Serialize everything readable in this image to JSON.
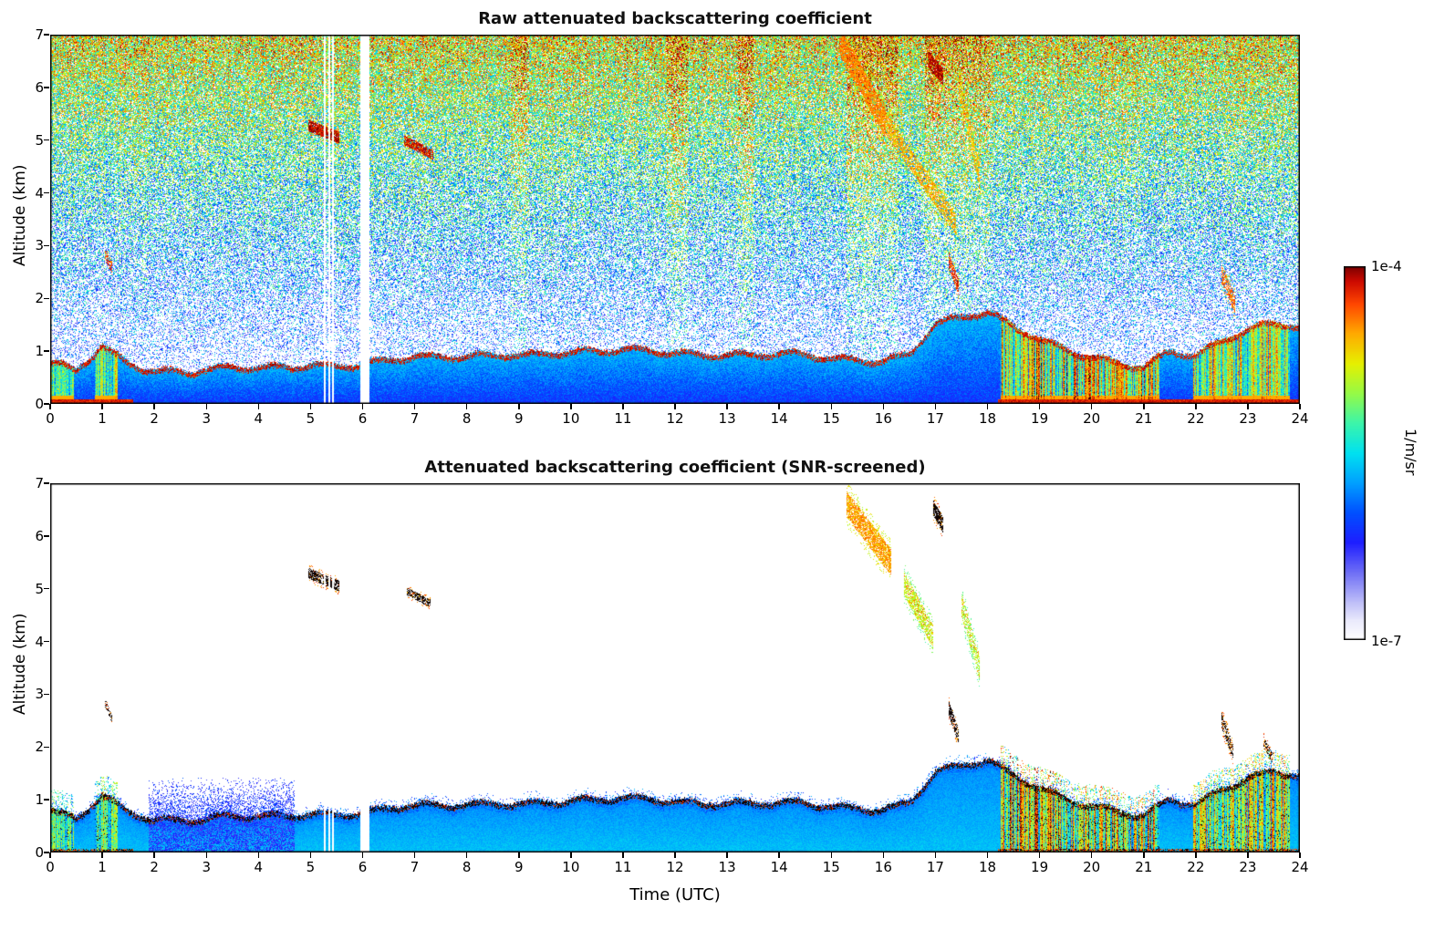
{
  "figure": {
    "xlabel": "Time (UTC)",
    "ylabel": "Altitude (km)"
  },
  "colorbar": {
    "max_label": "1e-4",
    "min_label": "1e-7",
    "unit": "1/m/sr",
    "scale": "log"
  },
  "colormap": [
    [
      0.0,
      255,
      255,
      255
    ],
    [
      0.05,
      235,
      235,
      252
    ],
    [
      0.1,
      190,
      190,
      248
    ],
    [
      0.18,
      110,
      110,
      245
    ],
    [
      0.26,
      30,
      30,
      255
    ],
    [
      0.34,
      0,
      80,
      255
    ],
    [
      0.42,
      0,
      160,
      255
    ],
    [
      0.5,
      0,
      225,
      240
    ],
    [
      0.58,
      60,
      245,
      170
    ],
    [
      0.66,
      150,
      250,
      70
    ],
    [
      0.74,
      230,
      240,
      0
    ],
    [
      0.82,
      255,
      170,
      0
    ],
    [
      0.9,
      255,
      70,
      0
    ],
    [
      0.96,
      205,
      10,
      0
    ],
    [
      1.0,
      125,
      0,
      0
    ]
  ],
  "chart_data": [
    {
      "type": "heatmap",
      "title": "Raw attenuated backscattering coefficient",
      "xlabel": "",
      "ylabel": "Altitude (km)",
      "x_range": [
        0,
        24
      ],
      "y_range": [
        0,
        7
      ],
      "xticks": [
        0,
        1,
        2,
        3,
        4,
        5,
        6,
        7,
        8,
        9,
        10,
        11,
        12,
        13,
        14,
        15,
        16,
        17,
        18,
        19,
        20,
        21,
        22,
        23,
        24
      ],
      "yticks": [
        0,
        1,
        2,
        3,
        4,
        5,
        6,
        7
      ],
      "value_range": [
        "1e-7",
        "1e-4"
      ],
      "units": "1/m/sr",
      "description": "Range-corrected raw lidar backscatter: noise speckle increases from white/blue at low altitude to green/yellow/orange near 7 km; solid blue boundary layer below ~1 km capped by a dark-red gradient line; clouds and precipitation in warm colors; white column = data gap near 06 UTC.",
      "snr_screened": false,
      "data_gaps": [
        [
          5.95,
          6.13
        ]
      ],
      "thin_gaps": [
        [
          5.26,
          5.29
        ],
        [
          5.34,
          5.37
        ],
        [
          5.42,
          5.45
        ]
      ],
      "boundary_layer": {
        "t": [
          0,
          0.5,
          1,
          1.5,
          2,
          2.5,
          3,
          3.5,
          4,
          4.5,
          5,
          5.5,
          6,
          6.5,
          7,
          7.5,
          8,
          8.5,
          9,
          9.5,
          10,
          10.5,
          11,
          11.5,
          12,
          12.5,
          13,
          13.5,
          14,
          14.5,
          15,
          15.5,
          16,
          16.5,
          17,
          17.5,
          18,
          18.5,
          19,
          19.5,
          20,
          20.5,
          21,
          21.5,
          22,
          22.5,
          23,
          23.5,
          24
        ],
        "h": [
          0.8,
          0.65,
          1.15,
          0.85,
          0.7,
          0.65,
          0.65,
          0.7,
          0.7,
          0.75,
          0.8,
          0.8,
          0.8,
          0.85,
          0.9,
          0.9,
          0.95,
          1.0,
          1.0,
          1.0,
          1.0,
          1.0,
          1.05,
          1.05,
          1.05,
          1.0,
          1.0,
          0.95,
          0.95,
          0.95,
          0.9,
          0.9,
          0.9,
          1.0,
          1.55,
          1.65,
          1.75,
          1.5,
          1.3,
          1.1,
          0.95,
          0.8,
          0.7,
          1.0,
          0.95,
          1.25,
          1.5,
          1.6,
          1.5
        ]
      },
      "precip_intervals": [
        [
          0.0,
          0.45,
          0.55
        ],
        [
          0.85,
          1.3,
          0.7
        ],
        [
          18.25,
          21.3,
          1.0
        ],
        [
          21.95,
          23.8,
          0.85
        ]
      ],
      "surface_intervals": [
        [
          0,
          1.6
        ],
        [
          18.2,
          24
        ]
      ],
      "warm_streaks": [
        [
          8.85,
          9.2
        ],
        [
          11.85,
          12.25
        ],
        [
          13.2,
          13.5
        ],
        [
          15.3,
          16.3
        ],
        [
          16.8,
          18.05
        ]
      ],
      "clouds": [
        {
          "t0": 4.95,
          "t1": 5.55,
          "a0": 5.28,
          "a1": 5.05,
          "thick": 0.22,
          "v": 0.97,
          "density": 0.85
        },
        {
          "t0": 6.8,
          "t1": 7.35,
          "a0": 5.0,
          "a1": 4.72,
          "thick": 0.18,
          "v": 0.95,
          "density": 0.8
        },
        {
          "t0": 15.15,
          "t1": 16.05,
          "a0": 6.9,
          "a1": 5.3,
          "thick": 0.55,
          "v": 0.85,
          "density": 0.75
        },
        {
          "t0": 16.05,
          "t1": 17.4,
          "a0": 5.3,
          "a1": 3.4,
          "thick": 0.4,
          "v": 0.8,
          "density": 0.5
        },
        {
          "t0": 16.85,
          "t1": 17.15,
          "a0": 6.55,
          "a1": 6.2,
          "thick": 0.32,
          "v": 0.97,
          "density": 0.85
        },
        {
          "t0": 17.45,
          "t1": 17.85,
          "a0": 6.1,
          "a1": 4.3,
          "thick": 0.5,
          "v": 0.78,
          "density": 0.45
        },
        {
          "t0": 17.25,
          "t1": 17.45,
          "a0": 2.75,
          "a1": 2.2,
          "thick": 0.3,
          "v": 0.93,
          "density": 0.65
        },
        {
          "t0": 1.05,
          "t1": 1.2,
          "a0": 2.85,
          "a1": 2.55,
          "thick": 0.18,
          "v": 0.9,
          "density": 0.55
        },
        {
          "t0": 22.5,
          "t1": 22.75,
          "a0": 2.45,
          "a1": 1.9,
          "thick": 0.35,
          "v": 0.88,
          "density": 0.5
        }
      ]
    },
    {
      "type": "heatmap",
      "title": "Attenuated backscattering coefficient (SNR-screened)",
      "xlabel": "Time (UTC)",
      "ylabel": "Altitude (km)",
      "x_range": [
        0,
        24
      ],
      "y_range": [
        0,
        7
      ],
      "xticks": [
        0,
        1,
        2,
        3,
        4,
        5,
        6,
        7,
        8,
        9,
        10,
        11,
        12,
        13,
        14,
        15,
        16,
        17,
        18,
        19,
        20,
        21,
        22,
        23,
        24
      ],
      "yticks": [
        0,
        1,
        2,
        3,
        4,
        5,
        6,
        7
      ],
      "value_range": [
        "1e-7",
        "1e-4"
      ],
      "units": "1/m/sr",
      "description": "Same field after SNR screening: background noise removed (white); cyan/blue boundary layer below ~1 km with black over-range speckles at its top; cloud layers near 5 km (05 and 07 UTC), descending virga 15-18 UTC from ~6.5 to 3.5 km, warm-colored precipitation 18-21 and 22-24 UTC.",
      "snr_screened": true,
      "data_gaps": [
        [
          5.95,
          6.13
        ]
      ],
      "thin_gaps": [
        [
          5.26,
          5.29
        ],
        [
          5.34,
          5.37
        ],
        [
          5.42,
          5.45
        ]
      ],
      "boundary_layer": {
        "t": [
          0,
          0.5,
          1,
          1.5,
          2,
          2.5,
          3,
          3.5,
          4,
          4.5,
          5,
          5.5,
          6,
          6.5,
          7,
          7.5,
          8,
          8.5,
          9,
          9.5,
          10,
          10.5,
          11,
          11.5,
          12,
          12.5,
          13,
          13.5,
          14,
          14.5,
          15,
          15.5,
          16,
          16.5,
          17,
          17.5,
          18,
          18.5,
          19,
          19.5,
          20,
          20.5,
          21,
          21.5,
          22,
          22.5,
          23,
          23.5,
          24
        ],
        "h": [
          0.8,
          0.65,
          1.15,
          0.85,
          0.7,
          0.65,
          0.65,
          0.7,
          0.7,
          0.75,
          0.8,
          0.8,
          0.8,
          0.85,
          0.9,
          0.9,
          0.95,
          1.0,
          1.0,
          1.0,
          1.0,
          1.0,
          1.05,
          1.05,
          1.05,
          1.0,
          1.0,
          0.95,
          0.95,
          0.95,
          0.9,
          0.9,
          0.9,
          1.0,
          1.55,
          1.65,
          1.75,
          1.5,
          1.3,
          1.1,
          0.95,
          0.8,
          0.7,
          1.0,
          0.95,
          1.25,
          1.5,
          1.6,
          1.5
        ]
      },
      "precip_intervals": [
        [
          0.0,
          0.45,
          0.55
        ],
        [
          0.85,
          1.3,
          0.7
        ],
        [
          18.25,
          21.3,
          1.0
        ],
        [
          21.95,
          23.8,
          0.85
        ]
      ],
      "surface_intervals": [
        [
          0,
          1.6
        ],
        [
          18.2,
          24
        ]
      ],
      "haze": {
        "t0": 1.9,
        "t1": 4.7,
        "top": 1.45
      },
      "clouds": [
        {
          "t0": 4.95,
          "t1": 5.55,
          "a0": 5.3,
          "a1": 5.05,
          "thick": 0.2,
          "v": 1.05,
          "density": 0.7
        },
        {
          "t0": 6.85,
          "t1": 7.3,
          "a0": 4.95,
          "a1": 4.72,
          "thick": 0.15,
          "v": 1.05,
          "density": 0.6
        },
        {
          "t0": 15.3,
          "t1": 16.15,
          "a0": 6.6,
          "a1": 5.5,
          "thick": 0.5,
          "v": 0.82,
          "density": 0.7
        },
        {
          "t0": 16.4,
          "t1": 16.95,
          "a0": 5.1,
          "a1": 4.1,
          "thick": 0.45,
          "v": 0.7,
          "density": 0.55
        },
        {
          "t0": 16.95,
          "t1": 17.15,
          "a0": 6.55,
          "a1": 6.2,
          "thick": 0.3,
          "v": 1.05,
          "density": 0.75
        },
        {
          "t0": 17.5,
          "t1": 17.85,
          "a0": 4.7,
          "a1": 3.5,
          "thick": 0.45,
          "v": 0.68,
          "density": 0.5
        },
        {
          "t0": 17.25,
          "t1": 17.45,
          "a0": 2.75,
          "a1": 2.2,
          "thick": 0.28,
          "v": 1.05,
          "density": 0.6
        },
        {
          "t0": 1.05,
          "t1": 1.2,
          "a0": 2.85,
          "a1": 2.5,
          "thick": 0.15,
          "v": 1.05,
          "density": 0.45
        },
        {
          "t0": 22.5,
          "t1": 22.72,
          "a0": 2.5,
          "a1": 1.9,
          "thick": 0.3,
          "v": 1.05,
          "density": 0.45
        },
        {
          "t0": 23.3,
          "t1": 23.5,
          "a0": 2.1,
          "a1": 1.75,
          "thick": 0.2,
          "v": 1.05,
          "density": 0.35
        }
      ]
    }
  ]
}
